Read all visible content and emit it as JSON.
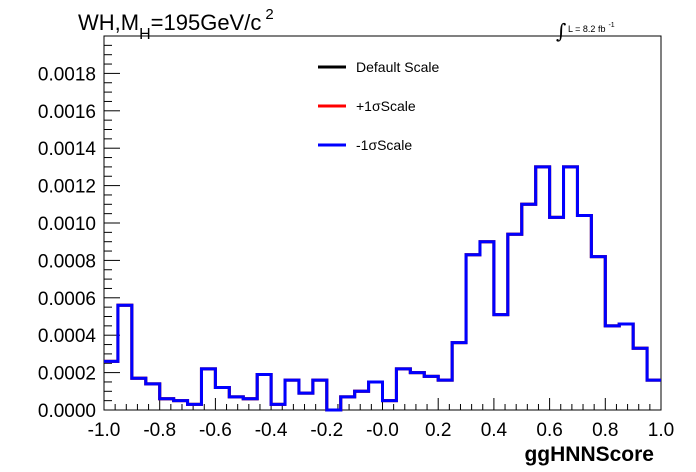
{
  "title": {
    "main": "WH,M",
    "sub": "H",
    "rest": "=195GeV/c",
    "sup": "2"
  },
  "lumi": {
    "integral": "∫",
    "text": "L = 8.2 fb",
    "sup": "-1"
  },
  "chart_data": {
    "type": "line",
    "xlabel": "ggHNNScore",
    "ylabel": "",
    "xlim": [
      -1.0,
      1.0
    ],
    "ylim": [
      0.0,
      0.002
    ],
    "x_ticks": [
      "-1.0",
      "-0.8",
      "-0.6",
      "-0.4",
      "-0.2",
      "-0.0",
      "0.2",
      "0.4",
      "0.6",
      "0.8",
      "1.0"
    ],
    "y_ticks": [
      "0.0000",
      "0.0002",
      "0.0004",
      "0.0006",
      "0.0008",
      "0.0010",
      "0.0012",
      "0.0014",
      "0.0016",
      "0.0018"
    ],
    "bin_edges": [
      -1.0,
      -0.95,
      -0.9,
      -0.85,
      -0.8,
      -0.75,
      -0.7,
      -0.65,
      -0.6,
      -0.55,
      -0.5,
      -0.45,
      -0.4,
      -0.35,
      -0.3,
      -0.25,
      -0.2,
      -0.15,
      -0.1,
      -0.05,
      0.0,
      0.05,
      0.1,
      0.15,
      0.2,
      0.25,
      0.3,
      0.35,
      0.4,
      0.45,
      0.5,
      0.55,
      0.6,
      0.65,
      0.7,
      0.75,
      0.8,
      0.85,
      0.9,
      0.95,
      1.0
    ],
    "series": [
      {
        "name": "Default Scale",
        "color": "#000000",
        "values": [
          0.00026,
          0.00056,
          0.00017,
          0.00014,
          6e-05,
          5e-05,
          3e-05,
          0.00022,
          0.00012,
          7e-05,
          6e-05,
          0.00019,
          3e-05,
          0.00016,
          9e-05,
          0.00016,
          0.0,
          7e-05,
          0.0001,
          0.00015,
          5e-05,
          0.00022,
          0.0002,
          0.00018,
          0.00016,
          0.00036,
          0.00083,
          0.0009,
          0.00051,
          0.00094,
          0.0011,
          0.0013,
          0.00103,
          0.0013,
          0.00104,
          0.00082,
          0.00045,
          0.00046,
          0.00033,
          0.00016
        ]
      },
      {
        "name": "+1σScale",
        "color": "#ff0000",
        "values": [
          0.00026,
          0.00056,
          0.00017,
          0.00014,
          6e-05,
          5e-05,
          3e-05,
          0.00022,
          0.00012,
          7e-05,
          6e-05,
          0.00019,
          3e-05,
          0.00016,
          9e-05,
          0.00016,
          0.0,
          7e-05,
          0.0001,
          0.00015,
          5e-05,
          0.00022,
          0.0002,
          0.00018,
          0.00016,
          0.00036,
          0.00083,
          0.0009,
          0.00051,
          0.00094,
          0.0011,
          0.0013,
          0.00103,
          0.0013,
          0.00104,
          0.00082,
          0.00045,
          0.00046,
          0.00033,
          0.00016
        ]
      },
      {
        "name": "-1σScale",
        "color": "#0000ff",
        "values": [
          0.00026,
          0.00056,
          0.00017,
          0.00014,
          6e-05,
          5e-05,
          3e-05,
          0.00022,
          0.00012,
          7e-05,
          6e-05,
          0.00019,
          3e-05,
          0.00016,
          9e-05,
          0.00016,
          0.0,
          7e-05,
          0.0001,
          0.00015,
          5e-05,
          0.00022,
          0.0002,
          0.00018,
          0.00016,
          0.00036,
          0.00083,
          0.0009,
          0.00051,
          0.00094,
          0.0011,
          0.0013,
          0.00103,
          0.0013,
          0.00104,
          0.00082,
          0.00045,
          0.00046,
          0.00033,
          0.00016
        ]
      }
    ],
    "legend_position": "top-center",
    "grid": false
  }
}
